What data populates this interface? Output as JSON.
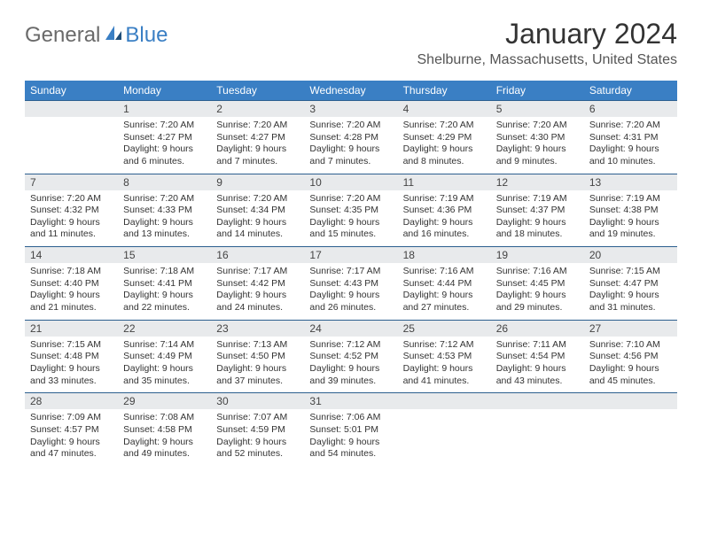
{
  "logo": {
    "word1": "General",
    "word2": "Blue"
  },
  "title": "January 2024",
  "location": "Shelburne, Massachusetts, United States",
  "colors": {
    "header_bg": "#3a7fc4",
    "header_text": "#ffffff",
    "daynum_bg": "#e8eaec",
    "border": "#2c5f8f",
    "body_text": "#333333",
    "logo_gray": "#6a6a6a",
    "logo_blue": "#3a7fc4"
  },
  "weekdays": [
    "Sunday",
    "Monday",
    "Tuesday",
    "Wednesday",
    "Thursday",
    "Friday",
    "Saturday"
  ],
  "weeks": [
    {
      "nums": [
        "",
        "1",
        "2",
        "3",
        "4",
        "5",
        "6"
      ],
      "cells": [
        {},
        {
          "sunrise": "Sunrise: 7:20 AM",
          "sunset": "Sunset: 4:27 PM",
          "day1": "Daylight: 9 hours",
          "day2": "and 6 minutes."
        },
        {
          "sunrise": "Sunrise: 7:20 AM",
          "sunset": "Sunset: 4:27 PM",
          "day1": "Daylight: 9 hours",
          "day2": "and 7 minutes."
        },
        {
          "sunrise": "Sunrise: 7:20 AM",
          "sunset": "Sunset: 4:28 PM",
          "day1": "Daylight: 9 hours",
          "day2": "and 7 minutes."
        },
        {
          "sunrise": "Sunrise: 7:20 AM",
          "sunset": "Sunset: 4:29 PM",
          "day1": "Daylight: 9 hours",
          "day2": "and 8 minutes."
        },
        {
          "sunrise": "Sunrise: 7:20 AM",
          "sunset": "Sunset: 4:30 PM",
          "day1": "Daylight: 9 hours",
          "day2": "and 9 minutes."
        },
        {
          "sunrise": "Sunrise: 7:20 AM",
          "sunset": "Sunset: 4:31 PM",
          "day1": "Daylight: 9 hours",
          "day2": "and 10 minutes."
        }
      ]
    },
    {
      "nums": [
        "7",
        "8",
        "9",
        "10",
        "11",
        "12",
        "13"
      ],
      "cells": [
        {
          "sunrise": "Sunrise: 7:20 AM",
          "sunset": "Sunset: 4:32 PM",
          "day1": "Daylight: 9 hours",
          "day2": "and 11 minutes."
        },
        {
          "sunrise": "Sunrise: 7:20 AM",
          "sunset": "Sunset: 4:33 PM",
          "day1": "Daylight: 9 hours",
          "day2": "and 13 minutes."
        },
        {
          "sunrise": "Sunrise: 7:20 AM",
          "sunset": "Sunset: 4:34 PM",
          "day1": "Daylight: 9 hours",
          "day2": "and 14 minutes."
        },
        {
          "sunrise": "Sunrise: 7:20 AM",
          "sunset": "Sunset: 4:35 PM",
          "day1": "Daylight: 9 hours",
          "day2": "and 15 minutes."
        },
        {
          "sunrise": "Sunrise: 7:19 AM",
          "sunset": "Sunset: 4:36 PM",
          "day1": "Daylight: 9 hours",
          "day2": "and 16 minutes."
        },
        {
          "sunrise": "Sunrise: 7:19 AM",
          "sunset": "Sunset: 4:37 PM",
          "day1": "Daylight: 9 hours",
          "day2": "and 18 minutes."
        },
        {
          "sunrise": "Sunrise: 7:19 AM",
          "sunset": "Sunset: 4:38 PM",
          "day1": "Daylight: 9 hours",
          "day2": "and 19 minutes."
        }
      ]
    },
    {
      "nums": [
        "14",
        "15",
        "16",
        "17",
        "18",
        "19",
        "20"
      ],
      "cells": [
        {
          "sunrise": "Sunrise: 7:18 AM",
          "sunset": "Sunset: 4:40 PM",
          "day1": "Daylight: 9 hours",
          "day2": "and 21 minutes."
        },
        {
          "sunrise": "Sunrise: 7:18 AM",
          "sunset": "Sunset: 4:41 PM",
          "day1": "Daylight: 9 hours",
          "day2": "and 22 minutes."
        },
        {
          "sunrise": "Sunrise: 7:17 AM",
          "sunset": "Sunset: 4:42 PM",
          "day1": "Daylight: 9 hours",
          "day2": "and 24 minutes."
        },
        {
          "sunrise": "Sunrise: 7:17 AM",
          "sunset": "Sunset: 4:43 PM",
          "day1": "Daylight: 9 hours",
          "day2": "and 26 minutes."
        },
        {
          "sunrise": "Sunrise: 7:16 AM",
          "sunset": "Sunset: 4:44 PM",
          "day1": "Daylight: 9 hours",
          "day2": "and 27 minutes."
        },
        {
          "sunrise": "Sunrise: 7:16 AM",
          "sunset": "Sunset: 4:45 PM",
          "day1": "Daylight: 9 hours",
          "day2": "and 29 minutes."
        },
        {
          "sunrise": "Sunrise: 7:15 AM",
          "sunset": "Sunset: 4:47 PM",
          "day1": "Daylight: 9 hours",
          "day2": "and 31 minutes."
        }
      ]
    },
    {
      "nums": [
        "21",
        "22",
        "23",
        "24",
        "25",
        "26",
        "27"
      ],
      "cells": [
        {
          "sunrise": "Sunrise: 7:15 AM",
          "sunset": "Sunset: 4:48 PM",
          "day1": "Daylight: 9 hours",
          "day2": "and 33 minutes."
        },
        {
          "sunrise": "Sunrise: 7:14 AM",
          "sunset": "Sunset: 4:49 PM",
          "day1": "Daylight: 9 hours",
          "day2": "and 35 minutes."
        },
        {
          "sunrise": "Sunrise: 7:13 AM",
          "sunset": "Sunset: 4:50 PM",
          "day1": "Daylight: 9 hours",
          "day2": "and 37 minutes."
        },
        {
          "sunrise": "Sunrise: 7:12 AM",
          "sunset": "Sunset: 4:52 PM",
          "day1": "Daylight: 9 hours",
          "day2": "and 39 minutes."
        },
        {
          "sunrise": "Sunrise: 7:12 AM",
          "sunset": "Sunset: 4:53 PM",
          "day1": "Daylight: 9 hours",
          "day2": "and 41 minutes."
        },
        {
          "sunrise": "Sunrise: 7:11 AM",
          "sunset": "Sunset: 4:54 PM",
          "day1": "Daylight: 9 hours",
          "day2": "and 43 minutes."
        },
        {
          "sunrise": "Sunrise: 7:10 AM",
          "sunset": "Sunset: 4:56 PM",
          "day1": "Daylight: 9 hours",
          "day2": "and 45 minutes."
        }
      ]
    },
    {
      "nums": [
        "28",
        "29",
        "30",
        "31",
        "",
        "",
        ""
      ],
      "cells": [
        {
          "sunrise": "Sunrise: 7:09 AM",
          "sunset": "Sunset: 4:57 PM",
          "day1": "Daylight: 9 hours",
          "day2": "and 47 minutes."
        },
        {
          "sunrise": "Sunrise: 7:08 AM",
          "sunset": "Sunset: 4:58 PM",
          "day1": "Daylight: 9 hours",
          "day2": "and 49 minutes."
        },
        {
          "sunrise": "Sunrise: 7:07 AM",
          "sunset": "Sunset: 4:59 PM",
          "day1": "Daylight: 9 hours",
          "day2": "and 52 minutes."
        },
        {
          "sunrise": "Sunrise: 7:06 AM",
          "sunset": "Sunset: 5:01 PM",
          "day1": "Daylight: 9 hours",
          "day2": "and 54 minutes."
        },
        {},
        {},
        {}
      ]
    }
  ]
}
